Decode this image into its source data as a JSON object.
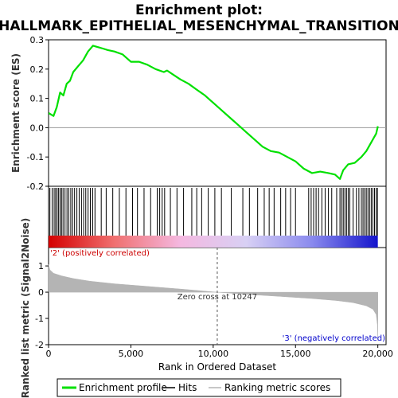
{
  "chart_data": {
    "type": "line",
    "title_line1": "Enrichment plot:",
    "title_line2": "HALLMARK_EPITHELIAL_MESENCHYMAL_TRANSITION",
    "xlabel": "Rank in Ordered Dataset",
    "ylabel_top": "Enrichment score (ES)",
    "ylabel_bottom": "Ranked list metric (Signal2Noise)",
    "x_range": [
      0,
      20500
    ],
    "x_ticks": [
      0,
      5000,
      10000,
      15000,
      20000
    ],
    "x_tick_labels": [
      "0",
      "5,000",
      "10,000",
      "15,000",
      "20,000"
    ],
    "es_ylim": [
      -0.2,
      0.3
    ],
    "es_ticks": [
      -0.2,
      -0.1,
      0.0,
      0.1,
      0.2,
      0.3
    ],
    "es_tick_labels": [
      "-0.2",
      "-0.1",
      "0.0",
      "0.1",
      "0.2",
      "0.3"
    ],
    "metric_ylim": [
      -2,
      1.7
    ],
    "metric_ticks": [
      -2,
      -1,
      0,
      1
    ],
    "metric_tick_labels": [
      "-2",
      "-1",
      "0",
      "1"
    ],
    "enrichment_profile": [
      [
        0,
        0.05
      ],
      [
        300,
        0.04
      ],
      [
        500,
        0.07
      ],
      [
        700,
        0.12
      ],
      [
        900,
        0.11
      ],
      [
        1100,
        0.15
      ],
      [
        1300,
        0.16
      ],
      [
        1500,
        0.19
      ],
      [
        1800,
        0.21
      ],
      [
        2100,
        0.23
      ],
      [
        2400,
        0.26
      ],
      [
        2700,
        0.28
      ],
      [
        3000,
        0.275
      ],
      [
        3300,
        0.27
      ],
      [
        3600,
        0.265
      ],
      [
        4000,
        0.26
      ],
      [
        4500,
        0.25
      ],
      [
        5000,
        0.225
      ],
      [
        5500,
        0.225
      ],
      [
        6000,
        0.215
      ],
      [
        6500,
        0.2
      ],
      [
        7000,
        0.19
      ],
      [
        7200,
        0.195
      ],
      [
        7600,
        0.18
      ],
      [
        8000,
        0.165
      ],
      [
        8500,
        0.15
      ],
      [
        9000,
        0.13
      ],
      [
        9500,
        0.11
      ],
      [
        10000,
        0.085
      ],
      [
        10500,
        0.06
      ],
      [
        11000,
        0.035
      ],
      [
        11500,
        0.01
      ],
      [
        12000,
        -0.015
      ],
      [
        12500,
        -0.04
      ],
      [
        13000,
        -0.065
      ],
      [
        13500,
        -0.08
      ],
      [
        14000,
        -0.085
      ],
      [
        14500,
        -0.1
      ],
      [
        15000,
        -0.115
      ],
      [
        15500,
        -0.14
      ],
      [
        16000,
        -0.155
      ],
      [
        16500,
        -0.15
      ],
      [
        17000,
        -0.155
      ],
      [
        17400,
        -0.16
      ],
      [
        17700,
        -0.175
      ],
      [
        17900,
        -0.145
      ],
      [
        18200,
        -0.125
      ],
      [
        18600,
        -0.12
      ],
      [
        19000,
        -0.1
      ],
      [
        19300,
        -0.08
      ],
      [
        19600,
        -0.05
      ],
      [
        19900,
        -0.02
      ],
      [
        20000,
        0.005
      ]
    ],
    "hit_ranks": [
      80,
      220,
      340,
      430,
      520,
      610,
      700,
      790,
      880,
      1000,
      1120,
      1230,
      1350,
      1460,
      1580,
      1720,
      1860,
      2000,
      2130,
      2260,
      2400,
      2540,
      2680,
      2820,
      3200,
      3500,
      3900,
      4300,
      4700,
      5100,
      5400,
      5800,
      6200,
      6600,
      6750,
      6900,
      7050,
      7400,
      7800,
      8200,
      8700,
      9000,
      9300,
      9700,
      10100,
      10500,
      11100,
      11800,
      12200,
      12700,
      13100,
      13400,
      13700,
      14100,
      14400,
      14700,
      15000,
      15800,
      15950,
      16100,
      16250,
      16400,
      16600,
      16800,
      17000,
      17200,
      17500,
      17700,
      17800,
      17900,
      18000,
      18100,
      18200,
      18300,
      18500,
      18700,
      18850,
      19000,
      19100,
      19200,
      19300,
      19400,
      19500,
      19600,
      19700,
      19800,
      19900,
      19980
    ],
    "ranking_metric": [
      [
        0,
        1.05
      ],
      [
        80,
        0.85
      ],
      [
        300,
        0.72
      ],
      [
        800,
        0.62
      ],
      [
        1500,
        0.52
      ],
      [
        2500,
        0.42
      ],
      [
        4000,
        0.32
      ],
      [
        6000,
        0.22
      ],
      [
        8000,
        0.12
      ],
      [
        10247,
        0.0
      ],
      [
        12000,
        -0.08
      ],
      [
        14000,
        -0.16
      ],
      [
        16000,
        -0.24
      ],
      [
        17500,
        -0.32
      ],
      [
        18500,
        -0.4
      ],
      [
        19300,
        -0.52
      ],
      [
        19700,
        -0.65
      ],
      [
        19900,
        -0.85
      ],
      [
        19980,
        -1.25
      ],
      [
        20000,
        -1.85
      ]
    ],
    "zero_cross_rank": 10247,
    "zero_cross_label": "Zero cross at 10247",
    "positive_label": "'2' (positively correlated)",
    "negative_label": "'3' (negatively correlated)",
    "legend": {
      "items": [
        "Enrichment profile",
        "Hits",
        "Ranking metric scores"
      ],
      "placement": "bottom"
    },
    "colors": {
      "profile": "#00e000",
      "hits": "#000000",
      "metric": "#b4b4b4",
      "positive_label": "#cc0000",
      "negative_label": "#0000cc",
      "zero_cross": "#555555"
    },
    "gradient_stops": [
      "#d40000",
      "#f07070",
      "#f4b8e0",
      "#d8d0f4",
      "#8a8aee",
      "#1414cc"
    ]
  }
}
